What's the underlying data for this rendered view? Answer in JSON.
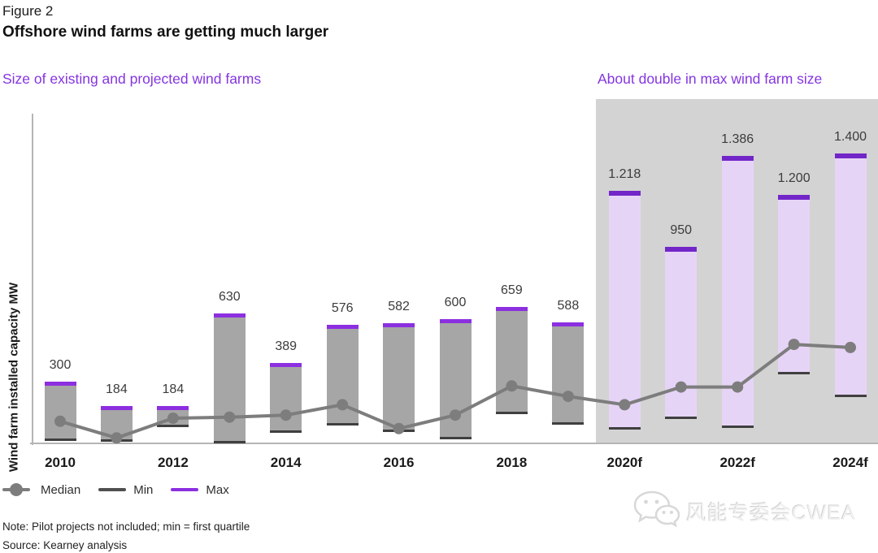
{
  "figure": {
    "label": "Figure 2",
    "title": "Offshore wind farms are getting much larger",
    "subtitle_left": "Size of existing and projected wind farms",
    "subtitle_right": "About double in max wind farm size"
  },
  "chart_data": {
    "type": "bar",
    "title": "Size of existing and projected wind farms",
    "ylabel": "Wind farm installed capacity MW",
    "categories": [
      "2010",
      "2011",
      "2012",
      "2013",
      "2014",
      "2015",
      "2016",
      "2017",
      "2018",
      "2019",
      "2020f",
      "2021f",
      "2022f",
      "2023f",
      "2024f"
    ],
    "x_tick_labels": [
      "2010",
      "2012",
      "2014",
      "2016",
      "2018",
      "2020f",
      "2022f",
      "2024f"
    ],
    "series": [
      {
        "name": "Max",
        "values": [
          300,
          184,
          184,
          630,
          389,
          576,
          582,
          600,
          659,
          588,
          1218,
          950,
          1386,
          1200,
          1400
        ]
      },
      {
        "name": "Median",
        "values": [
          110,
          30,
          125,
          130,
          140,
          190,
          75,
          140,
          280,
          230,
          190,
          275,
          275,
          480,
          465
        ]
      },
      {
        "name": "Min",
        "values": [
          15,
          12,
          80,
          5,
          55,
          90,
          60,
          25,
          145,
          95,
          70,
          120,
          80,
          335,
          225
        ]
      }
    ],
    "max_value_labels": [
      "300",
      "184",
      "184",
      "630",
      "389",
      "576",
      "582",
      "600",
      "659",
      "588",
      "1.218",
      "950",
      "1.386",
      "1.200",
      "1.400"
    ],
    "projected_from_index": 10,
    "ylim": [
      0,
      1660
    ],
    "grid": false,
    "legend_position": "bottom-left",
    "annotation": "About double in max wind farm size"
  },
  "legend": {
    "median": "Median",
    "min": "Min",
    "max": "Max"
  },
  "notes": {
    "note": "Note: Pilot projects not included; min = first quartile",
    "source": "Source: Kearney analysis"
  },
  "watermark": {
    "icon": "wechat-icon",
    "text": "风能专委会CWEA"
  },
  "colors": {
    "accent_purple": "#8535e0",
    "max_cap": "#8c2fe0",
    "projected_cap": "#7226c8",
    "bar_gray": "#a6a6a6",
    "bar_lavender": "#e6d4f7",
    "panel_gray": "#d3d3d3",
    "median_gray": "#7d7d7d",
    "min_dark": "#3f3f3f"
  }
}
